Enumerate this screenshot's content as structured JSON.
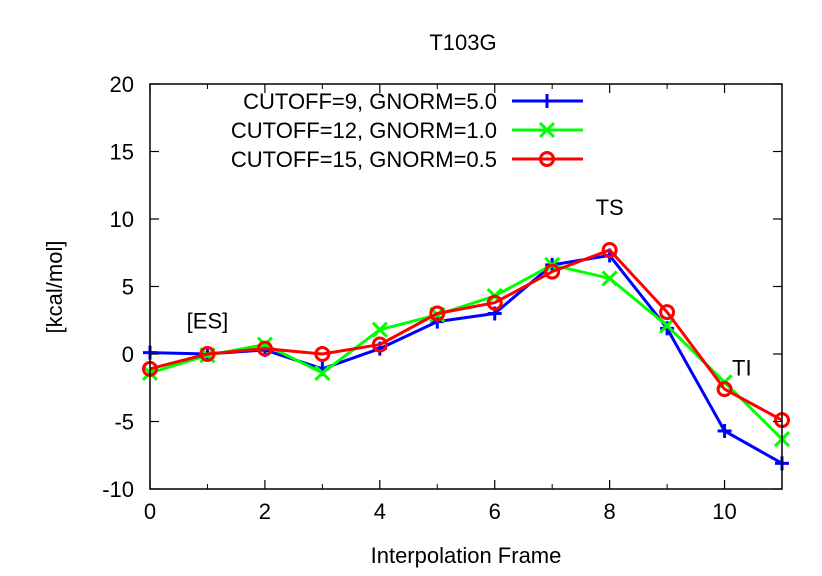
{
  "chart_data": {
    "type": "line",
    "title": "T103G",
    "xlabel": "Interpolation Frame",
    "ylabel": "[kcal/mol]",
    "xlim": [
      0,
      11
    ],
    "ylim": [
      -10,
      20
    ],
    "xticks": [
      "0",
      "2",
      "4",
      "6",
      "8",
      "10"
    ],
    "yticks": [
      "-10",
      "-5",
      "0",
      "5",
      "10",
      "15",
      "20"
    ],
    "legend_position": "top-right",
    "grid": false,
    "x": [
      0,
      1,
      2,
      3,
      4,
      5,
      6,
      7,
      8,
      9,
      10,
      11
    ],
    "series": [
      {
        "name": "CUTOFF=9, GNORM=5.0",
        "color": "#0000ff",
        "marker": "plus",
        "values": [
          0.1,
          0.0,
          0.3,
          -1.1,
          0.4,
          2.4,
          3.0,
          6.6,
          7.3,
          1.9,
          -5.7,
          -8.1
        ]
      },
      {
        "name": "CUTOFF=12, GNORM=1.0",
        "color": "#00ff00",
        "marker": "cross",
        "values": [
          -1.4,
          -0.1,
          0.7,
          -1.4,
          1.8,
          2.9,
          4.3,
          6.6,
          5.6,
          2.1,
          -2.1,
          -6.3
        ]
      },
      {
        "name": "CUTOFF=15, GNORM=0.5",
        "color": "#ff0000",
        "marker": "circle",
        "values": [
          -1.1,
          0.0,
          0.4,
          0.0,
          0.7,
          3.0,
          3.8,
          6.1,
          7.7,
          3.1,
          -2.6,
          -4.9
        ]
      }
    ],
    "annotations": [
      {
        "text": "[ES]",
        "x": 1,
        "y": 1.9
      },
      {
        "text": "TS",
        "x": 8,
        "y": 10.3
      },
      {
        "text": "TI",
        "x": 10.3,
        "y": -1.6
      }
    ]
  }
}
